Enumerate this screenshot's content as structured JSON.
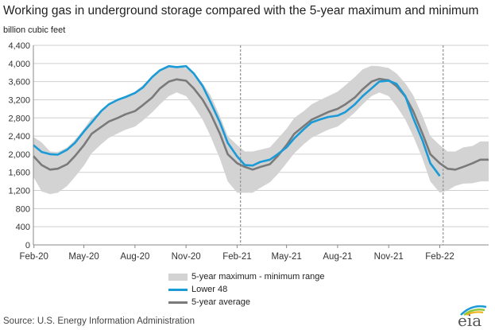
{
  "chart_data": {
    "type": "area",
    "title": "Working gas in underground storage compared with the 5-year maximum and minimum",
    "ylabel": "billion cubic feet",
    "ylim": [
      0,
      4400
    ],
    "yticks": [
      0,
      400,
      800,
      1200,
      1600,
      2000,
      2400,
      2800,
      3200,
      3600,
      4000,
      4400
    ],
    "ytick_labels": [
      "0",
      "400",
      "800",
      "1,200",
      "1,600",
      "2,000",
      "2,400",
      "2,800",
      "3,200",
      "3,600",
      "4,000",
      "4,400"
    ],
    "xlim": [
      "2020-01-31",
      "2022-04-30"
    ],
    "xticks": [
      "2020-02-01",
      "2020-05-01",
      "2020-08-01",
      "2020-11-01",
      "2021-02-01",
      "2021-05-01",
      "2021-08-01",
      "2021-11-01",
      "2022-02-01"
    ],
    "xtick_labels": [
      "Feb-20",
      "May-20",
      "Aug-20",
      "Nov-20",
      "Feb-21",
      "May-21",
      "Aug-21",
      "Nov-21",
      "Feb-22"
    ],
    "vlines": [
      "2021-02-07",
      "2022-02-07"
    ],
    "grid": "horizontal",
    "legend_position": "bottom",
    "legend": [
      "5-year maximum - minimum range",
      "Lower 48",
      "5-year average"
    ],
    "colors": {
      "range": "#d3d3d3",
      "lower48": "#1a9ad6",
      "average": "#7a7a7a",
      "grid": "#cfcfcf",
      "vline": "#999999"
    },
    "x": [
      "2020-01-31",
      "2020-02-15",
      "2020-03-01",
      "2020-03-15",
      "2020-04-01",
      "2020-04-15",
      "2020-05-01",
      "2020-05-15",
      "2020-06-01",
      "2020-06-15",
      "2020-07-01",
      "2020-07-15",
      "2020-08-01",
      "2020-08-15",
      "2020-09-01",
      "2020-09-15",
      "2020-10-01",
      "2020-10-15",
      "2020-11-01",
      "2020-11-15",
      "2020-12-01",
      "2020-12-15",
      "2021-01-01",
      "2021-01-15",
      "2021-02-01",
      "2021-02-15",
      "2021-03-01",
      "2021-03-15",
      "2021-04-01",
      "2021-04-15",
      "2021-05-01",
      "2021-05-15",
      "2021-06-01",
      "2021-06-15",
      "2021-07-01",
      "2021-07-15",
      "2021-08-01",
      "2021-08-15",
      "2021-09-01",
      "2021-09-15",
      "2021-10-01",
      "2021-10-15",
      "2021-11-01",
      "2021-11-15",
      "2021-12-01",
      "2021-12-15",
      "2022-01-01",
      "2022-01-15",
      "2022-02-01",
      "2022-02-15",
      "2022-03-01",
      "2022-03-15",
      "2022-04-01",
      "2022-04-15",
      "2022-04-30"
    ],
    "series": [
      {
        "name": "Lower 48",
        "values": [
          2200,
          2050,
          2000,
          1990,
          2100,
          2250,
          2500,
          2700,
          2950,
          3100,
          3200,
          3260,
          3350,
          3470,
          3700,
          3850,
          3940,
          3920,
          3940,
          3780,
          3500,
          3150,
          2700,
          2250,
          1950,
          1760,
          1750,
          1830,
          1880,
          2000,
          2150,
          2350,
          2550,
          2700,
          2770,
          2820,
          2850,
          2930,
          3100,
          3280,
          3450,
          3600,
          3620,
          3550,
          3280,
          2800,
          2300,
          1800,
          1520,
          null,
          null,
          null,
          null,
          null,
          null
        ]
      },
      {
        "name": "5-year average",
        "values": [
          1960,
          1760,
          1660,
          1680,
          1780,
          1960,
          2200,
          2450,
          2600,
          2720,
          2800,
          2880,
          2950,
          3080,
          3250,
          3450,
          3600,
          3650,
          3620,
          3450,
          3200,
          2900,
          2450,
          2000,
          1800,
          1720,
          1660,
          1720,
          1780,
          1960,
          2200,
          2450,
          2620,
          2760,
          2850,
          2930,
          3000,
          3100,
          3250,
          3430,
          3600,
          3660,
          3630,
          3500,
          3270,
          2950,
          2450,
          2000,
          1800,
          1680,
          1660,
          1720,
          1800,
          1880,
          1880
        ]
      },
      {
        "name": "5-year maximum",
        "values": [
          2380,
          2260,
          2060,
          2050,
          2150,
          2320,
          2560,
          2800,
          2940,
          3100,
          3200,
          3280,
          3380,
          3520,
          3700,
          3870,
          3950,
          3940,
          3900,
          3780,
          3560,
          3300,
          2840,
          2400,
          2200,
          2060,
          2060,
          2100,
          2150,
          2340,
          2560,
          2800,
          2950,
          3100,
          3200,
          3280,
          3380,
          3520,
          3700,
          3870,
          3950,
          3940,
          3900,
          3780,
          3560,
          3300,
          2840,
          2400,
          2200,
          2060,
          2060,
          2150,
          2180,
          2280,
          2280
        ]
      },
      {
        "name": "5-year minimum",
        "values": [
          1500,
          1180,
          1120,
          1150,
          1300,
          1500,
          1750,
          2020,
          2220,
          2360,
          2460,
          2540,
          2610,
          2740,
          2920,
          3100,
          3280,
          3360,
          3280,
          3060,
          2760,
          2400,
          1900,
          1400,
          1150,
          1150,
          1150,
          1260,
          1380,
          1560,
          1800,
          2020,
          2220,
          2360,
          2460,
          2540,
          2610,
          2740,
          2920,
          3100,
          3280,
          3360,
          3280,
          3060,
          2760,
          2400,
          1900,
          1400,
          1150,
          1200,
          1300,
          1350,
          1360,
          1400,
          1400
        ]
      }
    ]
  },
  "legend": {
    "range_label": "5-year maximum - minimum range",
    "lower48_label": "Lower 48",
    "average_label": "5-year average"
  },
  "source": "Source:  U.S. Energy Information Administration",
  "logo": {
    "text": "eia",
    "icon": "eia-logo"
  }
}
